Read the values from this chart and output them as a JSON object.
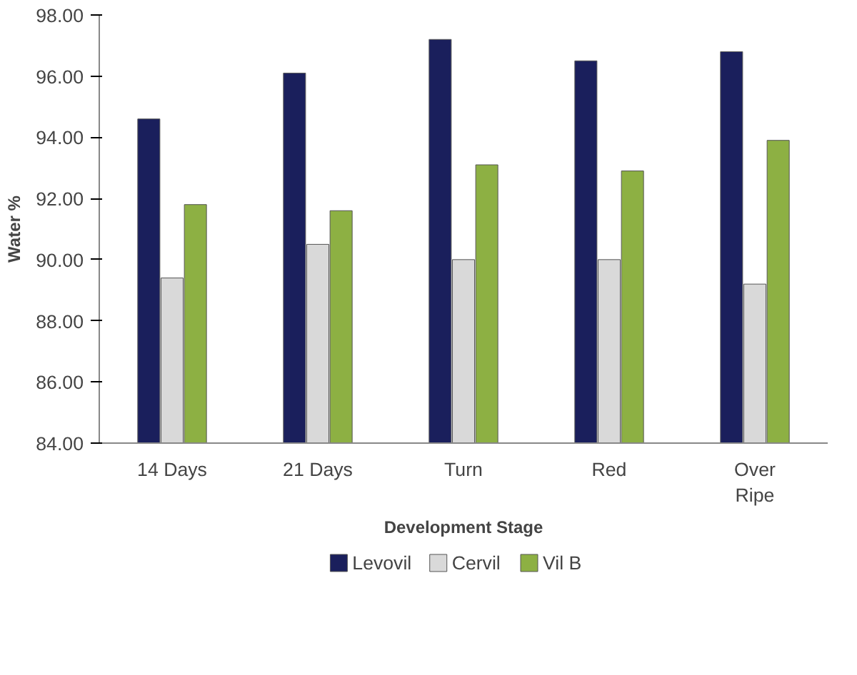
{
  "chart_data": {
    "type": "bar",
    "xlabel": "Development Stage",
    "ylabel": "Water %",
    "categories": [
      "14 Days",
      "21 Days",
      "Turn",
      "Red",
      "Over\nRipe"
    ],
    "series": [
      {
        "name": "Levovil",
        "color": "#1a1f5c",
        "values": [
          94.6,
          96.1,
          97.2,
          96.5,
          96.8
        ]
      },
      {
        "name": "Cervil",
        "color": "#d9d9d9",
        "values": [
          89.4,
          90.5,
          90.0,
          90.0,
          89.2
        ]
      },
      {
        "name": "Vil B",
        "color": "#8db043",
        "values": [
          91.8,
          91.6,
          93.1,
          92.9,
          93.9
        ]
      }
    ],
    "ylim": [
      84,
      98
    ],
    "yticks": [
      {
        "value": 84,
        "label": "84.00"
      },
      {
        "value": 86,
        "label": "86.00"
      },
      {
        "value": 88,
        "label": "88.00"
      },
      {
        "value": 90,
        "label": "90.00"
      },
      {
        "value": 92,
        "label": "92.00"
      },
      {
        "value": 94,
        "label": "94.00"
      },
      {
        "value": 96,
        "label": "96.00"
      },
      {
        "value": 98,
        "label": "98.00"
      }
    ],
    "grid": false,
    "legend": "bottom"
  }
}
